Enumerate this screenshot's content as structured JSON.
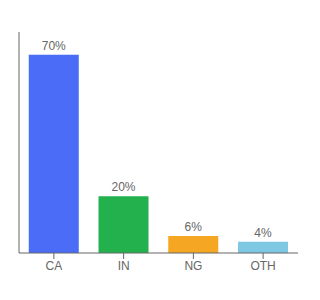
{
  "chart_data": {
    "type": "bar",
    "categories": [
      "CA",
      "IN",
      "NG",
      "OTH"
    ],
    "values": [
      70,
      20,
      6,
      4
    ],
    "value_labels": [
      "70%",
      "20%",
      "6%",
      "4%"
    ],
    "colors": [
      "#4a6cf7",
      "#22b14c",
      "#f5a623",
      "#7ec8e3"
    ],
    "ylim": [
      0,
      78
    ],
    "data_labels": true,
    "tick_labels": "x"
  }
}
